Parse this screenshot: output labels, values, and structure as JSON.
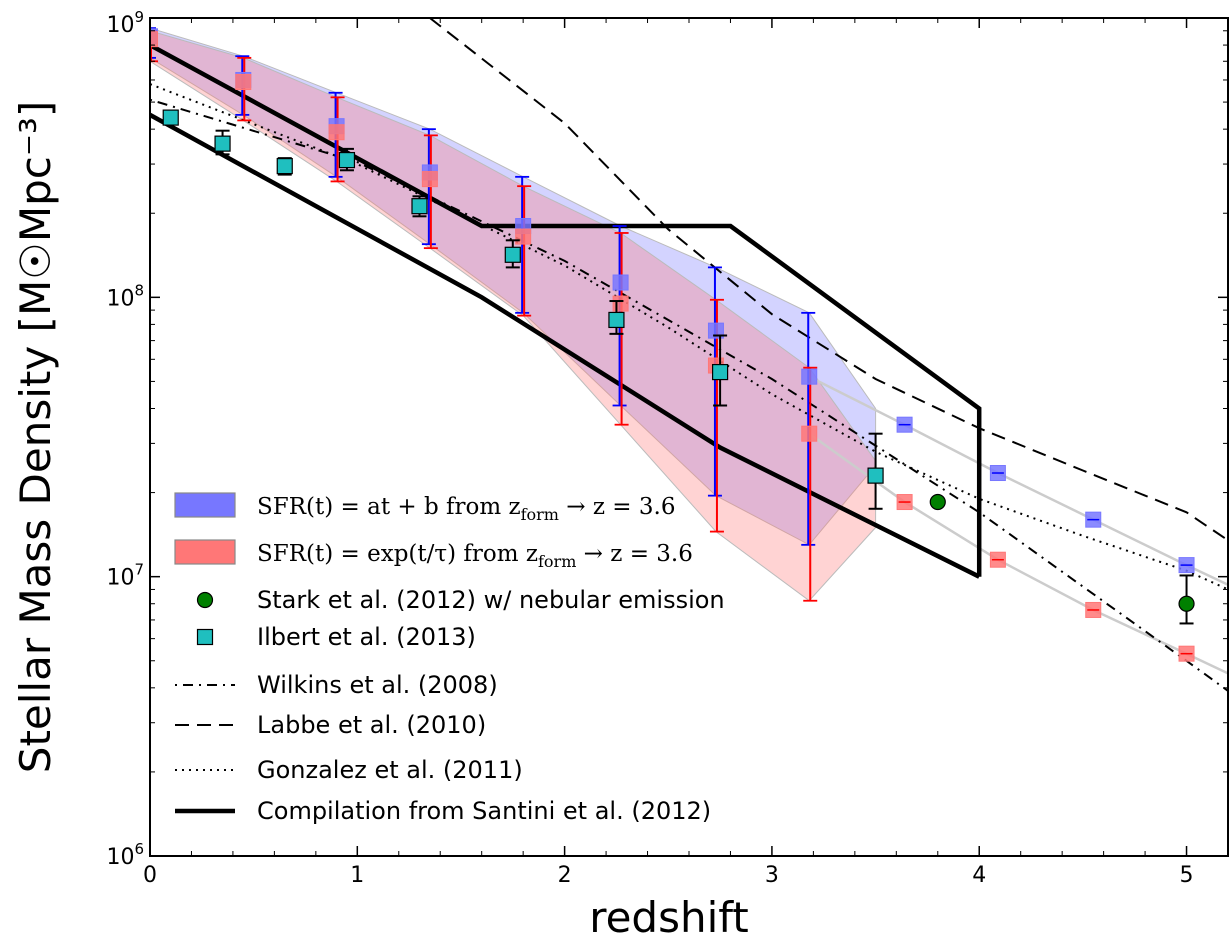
{
  "chart_data": {
    "type": "scatter",
    "xlabel": "redshift",
    "ylabel": "Stellar Mass Density [M☉Mpc⁻³]",
    "xlim": [
      0,
      5.2
    ],
    "ylim": [
      1000000,
      1000000000
    ],
    "y_scale": "log",
    "x_ticks": [
      "0",
      "1",
      "2",
      "3",
      "4",
      "5"
    ],
    "y_ticks": [
      {
        "base": "10",
        "exp": "6",
        "value": 1000000
      },
      {
        "base": "10",
        "exp": "7",
        "value": 10000000
      },
      {
        "base": "10",
        "exp": "8",
        "value": 100000000
      },
      {
        "base": "10",
        "exp": "9",
        "value": 1000000000
      }
    ],
    "legend_position": "lower-left",
    "series": [
      {
        "name": "SFR(t)=at+b from z_form→z=3.6",
        "kind": "band",
        "color": "#7777ff",
        "x": [
          0,
          0.45,
          0.9,
          1.35,
          1.8,
          2.27,
          2.73,
          3.18,
          3.5
        ],
        "upper": [
          920000000,
          730000000,
          540000000,
          400000000,
          270000000,
          180000000,
          128000000,
          88000000,
          40000000
        ],
        "lower": [
          720000000,
          450000000,
          270000000,
          155000000,
          88000000,
          41000000,
          19500000,
          13000000,
          25000000
        ],
        "points": {
          "x": [
            0,
            0.45,
            0.9,
            1.35,
            1.8,
            2.27,
            2.73,
            3.18
          ],
          "y": [
            860000000,
            600000000,
            410000000,
            280000000,
            180000000,
            113000000,
            76000000,
            52000000
          ]
        },
        "extrapolated": {
          "x": [
            3.64,
            4.09,
            4.55,
            5.0
          ],
          "y": [
            35000000,
            23500000,
            16000000,
            11000000
          ]
        }
      },
      {
        "name": "SFR(t)=exp(t/τ) from z_form→z=3.6",
        "kind": "band",
        "color": "#ff7777",
        "x": [
          0,
          0.45,
          0.9,
          1.35,
          1.8,
          2.27,
          2.73,
          3.18,
          3.5
        ],
        "upper": [
          900000000,
          720000000,
          520000000,
          380000000,
          250000000,
          170000000,
          98000000,
          56000000,
          26000000
        ],
        "lower": [
          700000000,
          430000000,
          260000000,
          150000000,
          86000000,
          35000000,
          14500000,
          8200000,
          15000000
        ],
        "points": {
          "x": [
            0,
            0.45,
            0.9,
            1.35,
            1.8,
            2.27,
            2.73,
            3.18
          ],
          "y": [
            840000000,
            590000000,
            390000000,
            265000000,
            165000000,
            95000000,
            57000000,
            32500000
          ]
        },
        "extrapolated": {
          "x": [
            3.64,
            4.09,
            4.55,
            5.0
          ],
          "y": [
            18500000,
            11500000,
            7600000,
            5300000
          ]
        }
      },
      {
        "name": "Stark et al. (2012) w/ nebular emission",
        "kind": "points",
        "color": "#008000",
        "x": [
          3.8,
          5.0
        ],
        "y": [
          18500000,
          8000000
        ],
        "yerr_low": [
          null,
          6800000
        ],
        "yerr_high": [
          null,
          10100000
        ]
      },
      {
        "name": "Ilbert et al. (2013)",
        "kind": "points",
        "color": "#1fbfbf",
        "x": [
          0.1,
          0.35,
          0.65,
          0.95,
          1.3,
          1.75,
          2.25,
          2.75,
          3.5
        ],
        "y": [
          440000000,
          355000000,
          295000000,
          310000000,
          212000000,
          142000000,
          83000000,
          54000000,
          23000000
        ],
        "yerr_low": [
          430000000,
          325000000,
          275000000,
          285000000,
          195000000,
          128000000,
          74000000,
          41000000,
          17500000
        ],
        "yerr_high": [
          450000000,
          395000000,
          315000000,
          340000000,
          230000000,
          160000000,
          97000000,
          73000000,
          32500000
        ]
      },
      {
        "name": "Wilkins et al. (2008)",
        "kind": "line",
        "style": "dashdot",
        "x": [
          0,
          1,
          2,
          3,
          4,
          5,
          5.2
        ],
        "y": [
          510000000,
          305000000,
          135000000,
          51000000,
          17000000,
          5000000,
          3900000
        ]
      },
      {
        "name": "Labbe et al. (2010)",
        "kind": "line",
        "style": "dashed",
        "x": [
          1.35,
          2,
          2.5,
          3,
          3.5,
          4,
          4.5,
          5,
          5.2
        ],
        "y": [
          1000000000,
          420000000,
          175000000,
          87000000,
          51000000,
          34000000,
          24000000,
          17000000,
          13500000
        ]
      },
      {
        "name": "Gonzalez et al. (2011)",
        "kind": "line",
        "style": "dotted",
        "x": [
          0,
          1,
          2,
          2.5,
          3,
          3.5,
          4,
          4.5,
          5,
          5.2
        ],
        "y": [
          580000000,
          300000000,
          130000000,
          78000000,
          45000000,
          28000000,
          19000000,
          14000000,
          10500000,
          9000000
        ]
      },
      {
        "name": "Compilation from Santini et al. (2012)",
        "kind": "polygon",
        "style": "solid-thick",
        "upper": {
          "x": [
            0,
            1.6,
            2.8,
            4.0
          ],
          "y": [
            800000000,
            180000000,
            180000000,
            40000000
          ]
        },
        "lower": {
          "x": [
            0,
            1.6,
            2.75,
            4.0
          ],
          "y": [
            450000000,
            100000000,
            29000000,
            10000000
          ]
        }
      }
    ]
  },
  "legend": [
    {
      "kind": "band",
      "color": "#7777ff",
      "text": "SFR(t) = at + b from z",
      "sub": "form",
      "tail": " → z = 3.6"
    },
    {
      "kind": "band",
      "color": "#ff7777",
      "text": "SFR(t) = exp(t/τ) from z",
      "sub": "form",
      "tail": " → z = 3.6"
    },
    {
      "kind": "circle",
      "color": "#008000",
      "text": "Stark et al. (2012) w/ nebular emission"
    },
    {
      "kind": "square",
      "color": "#1fbfbf",
      "text": "Ilbert et al. (2013)"
    },
    {
      "kind": "line",
      "dash": "2 6 10 6",
      "width": 2,
      "text": "Wilkins et al. (2008)"
    },
    {
      "kind": "line",
      "dash": "14 8",
      "width": 2,
      "text": "Labbe et al. (2010)"
    },
    {
      "kind": "line",
      "dash": "2 5",
      "width": 2,
      "text": "Gonzalez et al. (2011)"
    },
    {
      "kind": "line",
      "dash": "",
      "width": 4.5,
      "text": "Compilation from Santini et al. (2012)"
    }
  ]
}
